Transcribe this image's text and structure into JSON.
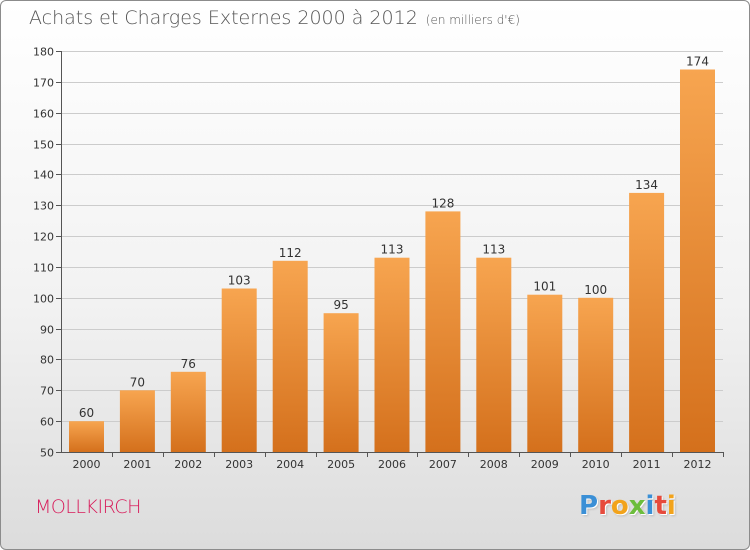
{
  "title": "Achats et Charges Externes 2000 à 2012",
  "unit": "(en milliers d'€)",
  "commune": "MOLLKIRCH",
  "logo": {
    "text": "Proxiti",
    "letters": [
      {
        "ch": "P",
        "color": "#3a8fd6"
      },
      {
        "ch": "r",
        "color": "#e64a3c"
      },
      {
        "ch": "o",
        "color": "#f2a31b"
      },
      {
        "ch": "x",
        "color": "#6cbd3c"
      },
      {
        "ch": "i",
        "color": "#3a8fd6"
      },
      {
        "ch": "t",
        "color": "#e64a3c"
      },
      {
        "ch": "i",
        "color": "#f2a31b"
      }
    ]
  },
  "colors": {
    "bar_top": "#f7a550",
    "bar_bottom": "#d4701c",
    "grid": "#cccccc",
    "axis": "#555555",
    "text": "#333333"
  },
  "chart_data": {
    "type": "bar",
    "title": "Achats et Charges Externes 2000 à 2012",
    "subtitle": "(en milliers d'€)",
    "categories": [
      "2000",
      "2001",
      "2002",
      "2003",
      "2004",
      "2005",
      "2006",
      "2007",
      "2008",
      "2009",
      "2010",
      "2011",
      "2012"
    ],
    "values": [
      60,
      70,
      76,
      103,
      112,
      95,
      113,
      128,
      113,
      101,
      100,
      134,
      174
    ],
    "ylim": [
      50,
      180
    ],
    "yticks": [
      50,
      60,
      70,
      80,
      90,
      100,
      110,
      120,
      130,
      140,
      150,
      160,
      170,
      180
    ],
    "grid": true,
    "xlabel": "",
    "ylabel": ""
  }
}
